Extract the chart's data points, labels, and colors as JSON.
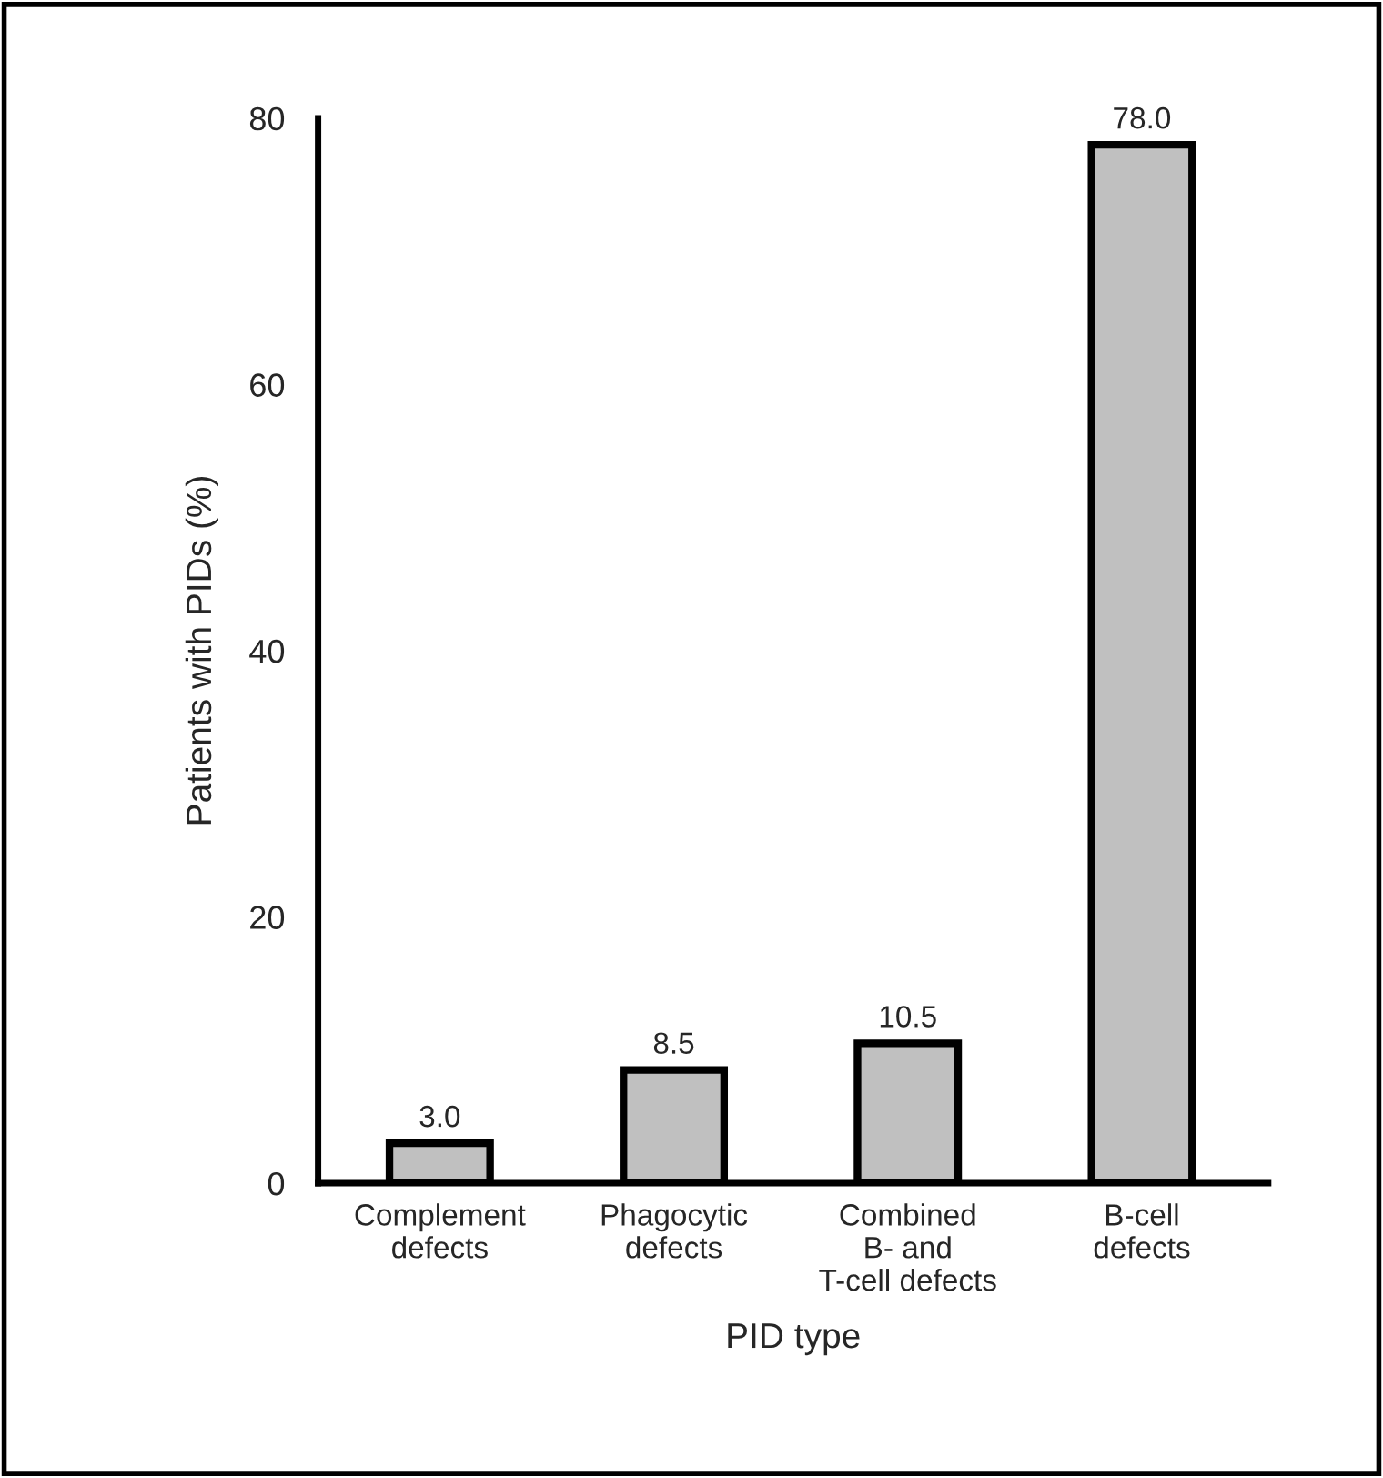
{
  "chart_data": {
    "type": "bar",
    "xlabel": "PID type",
    "ylabel": "Patients with PIDs (%)",
    "categories": [
      "Complement\ndefects",
      "Phagocytic\ndefects",
      "Combined\nB- and\nT-cell defects",
      "B-cell\ndefects"
    ],
    "values": [
      3.0,
      8.5,
      10.5,
      78.0
    ],
    "value_labels": [
      "3.0",
      "8.5",
      "10.5",
      "78.0"
    ],
    "color": "#c0c0c0",
    "ylim": [
      0,
      80
    ],
    "yticks": [
      0,
      20,
      40,
      60,
      80
    ],
    "grid": false,
    "legend": false
  }
}
